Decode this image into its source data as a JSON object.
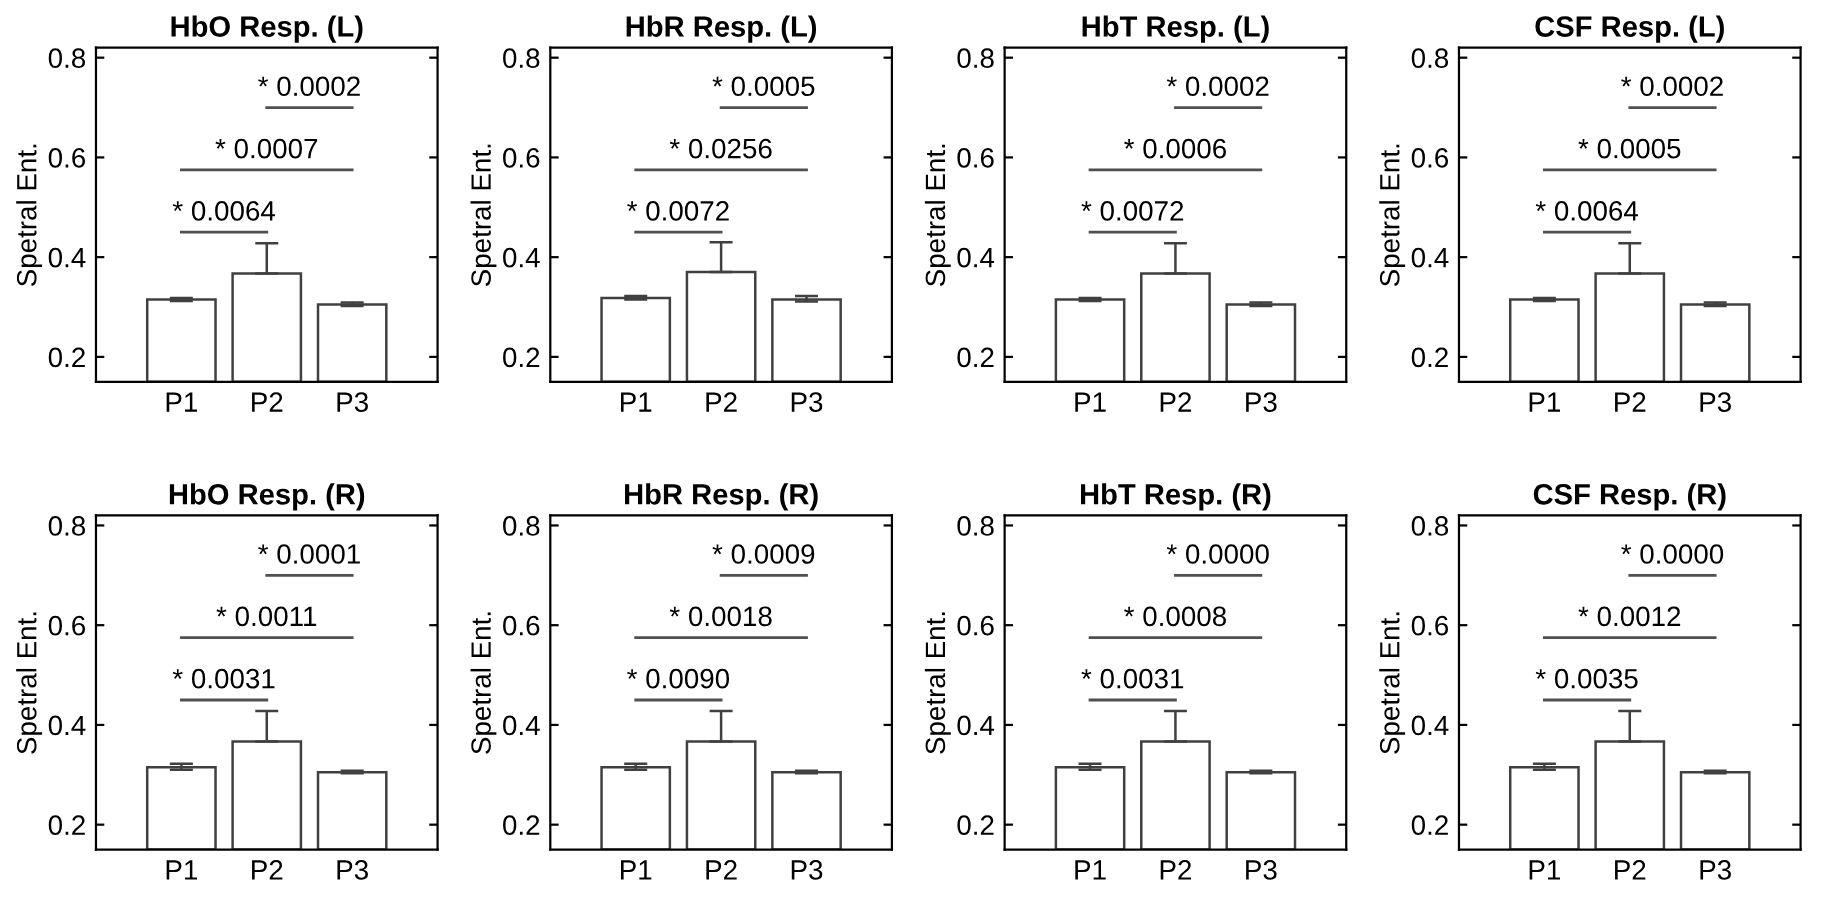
{
  "chart_data": [
    {
      "type": "bar",
      "title": "HbO Resp. (L)",
      "ylabel": "Spetral Ent.",
      "categories": [
        "P1",
        "P2",
        "P3"
      ],
      "values": [
        0.315,
        0.367,
        0.305
      ],
      "errors": [
        [
          0.312,
          0.318
        ],
        [
          0.367,
          0.428
        ],
        [
          0.302,
          0.309
        ]
      ],
      "color": "#ffffff",
      "ylim": [
        0.15,
        0.82
      ],
      "yticks": [
        0.2,
        0.4,
        0.6,
        0.8
      ],
      "grid": false,
      "annotations": [
        "* 0.0064",
        "* 0.0007",
        "* 0.0002"
      ]
    },
    {
      "type": "bar",
      "title": "HbR Resp. (L)",
      "ylabel": "Spetral Ent.",
      "categories": [
        "P1",
        "P2",
        "P3"
      ],
      "values": [
        0.318,
        0.37,
        0.315
      ],
      "errors": [
        [
          0.315,
          0.322
        ],
        [
          0.37,
          0.43
        ],
        [
          0.311,
          0.322
        ]
      ],
      "color": "#ffffff",
      "ylim": [
        0.15,
        0.82
      ],
      "yticks": [
        0.2,
        0.4,
        0.6,
        0.8
      ],
      "grid": false,
      "annotations": [
        "* 0.0072",
        "* 0.0256",
        "* 0.0005"
      ]
    },
    {
      "type": "bar",
      "title": "HbT Resp. (L)",
      "ylabel": "Spetral Ent.",
      "categories": [
        "P1",
        "P2",
        "P3"
      ],
      "values": [
        0.315,
        0.367,
        0.305
      ],
      "errors": [
        [
          0.312,
          0.318
        ],
        [
          0.367,
          0.428
        ],
        [
          0.302,
          0.309
        ]
      ],
      "color": "#ffffff",
      "ylim": [
        0.15,
        0.82
      ],
      "yticks": [
        0.2,
        0.4,
        0.6,
        0.8
      ],
      "grid": false,
      "annotations": [
        "* 0.0072",
        "* 0.0006",
        "* 0.0002"
      ]
    },
    {
      "type": "bar",
      "title": "CSF Resp. (L)",
      "ylabel": "Spetral Ent.",
      "categories": [
        "P1",
        "P2",
        "P3"
      ],
      "values": [
        0.315,
        0.367,
        0.305
      ],
      "errors": [
        [
          0.312,
          0.318
        ],
        [
          0.367,
          0.428
        ],
        [
          0.302,
          0.309
        ]
      ],
      "color": "#ffffff",
      "ylim": [
        0.15,
        0.82
      ],
      "yticks": [
        0.2,
        0.4,
        0.6,
        0.8
      ],
      "grid": false,
      "annotations": [
        "* 0.0064",
        "* 0.0005",
        "* 0.0002"
      ]
    },
    {
      "type": "bar",
      "title": "HbO Resp. (R)",
      "ylabel": "Spetral Ent.",
      "categories": [
        "P1",
        "P2",
        "P3"
      ],
      "values": [
        0.315,
        0.367,
        0.305
      ],
      "errors": [
        [
          0.31,
          0.322
        ],
        [
          0.367,
          0.428
        ],
        [
          0.303,
          0.308
        ]
      ],
      "color": "#ffffff",
      "ylim": [
        0.15,
        0.82
      ],
      "yticks": [
        0.2,
        0.4,
        0.6,
        0.8
      ],
      "grid": false,
      "annotations": [
        "* 0.0031",
        "* 0.0011",
        "* 0.0001"
      ]
    },
    {
      "type": "bar",
      "title": "HbR Resp. (R)",
      "ylabel": "Spetral Ent.",
      "categories": [
        "P1",
        "P2",
        "P3"
      ],
      "values": [
        0.315,
        0.367,
        0.305
      ],
      "errors": [
        [
          0.31,
          0.322
        ],
        [
          0.367,
          0.428
        ],
        [
          0.303,
          0.308
        ]
      ],
      "color": "#ffffff",
      "ylim": [
        0.15,
        0.82
      ],
      "yticks": [
        0.2,
        0.4,
        0.6,
        0.8
      ],
      "grid": false,
      "annotations": [
        "* 0.0090",
        "* 0.0018",
        "* 0.0009"
      ]
    },
    {
      "type": "bar",
      "title": "HbT Resp. (R)",
      "ylabel": "Spetral Ent.",
      "categories": [
        "P1",
        "P2",
        "P3"
      ],
      "values": [
        0.315,
        0.367,
        0.305
      ],
      "errors": [
        [
          0.31,
          0.322
        ],
        [
          0.367,
          0.428
        ],
        [
          0.303,
          0.308
        ]
      ],
      "color": "#ffffff",
      "ylim": [
        0.15,
        0.82
      ],
      "yticks": [
        0.2,
        0.4,
        0.6,
        0.8
      ],
      "grid": false,
      "annotations": [
        "* 0.0031",
        "* 0.0008",
        "* 0.0000"
      ]
    },
    {
      "type": "bar",
      "title": "CSF Resp. (R)",
      "ylabel": "Spetral Ent.",
      "categories": [
        "P1",
        "P2",
        "P3"
      ],
      "values": [
        0.315,
        0.367,
        0.305
      ],
      "errors": [
        [
          0.31,
          0.322
        ],
        [
          0.367,
          0.428
        ],
        [
          0.303,
          0.308
        ]
      ],
      "color": "#ffffff",
      "ylim": [
        0.15,
        0.82
      ],
      "yticks": [
        0.2,
        0.4,
        0.6,
        0.8
      ],
      "grid": false,
      "annotations": [
        "* 0.0035",
        "* 0.0012",
        "* 0.0000"
      ]
    }
  ]
}
